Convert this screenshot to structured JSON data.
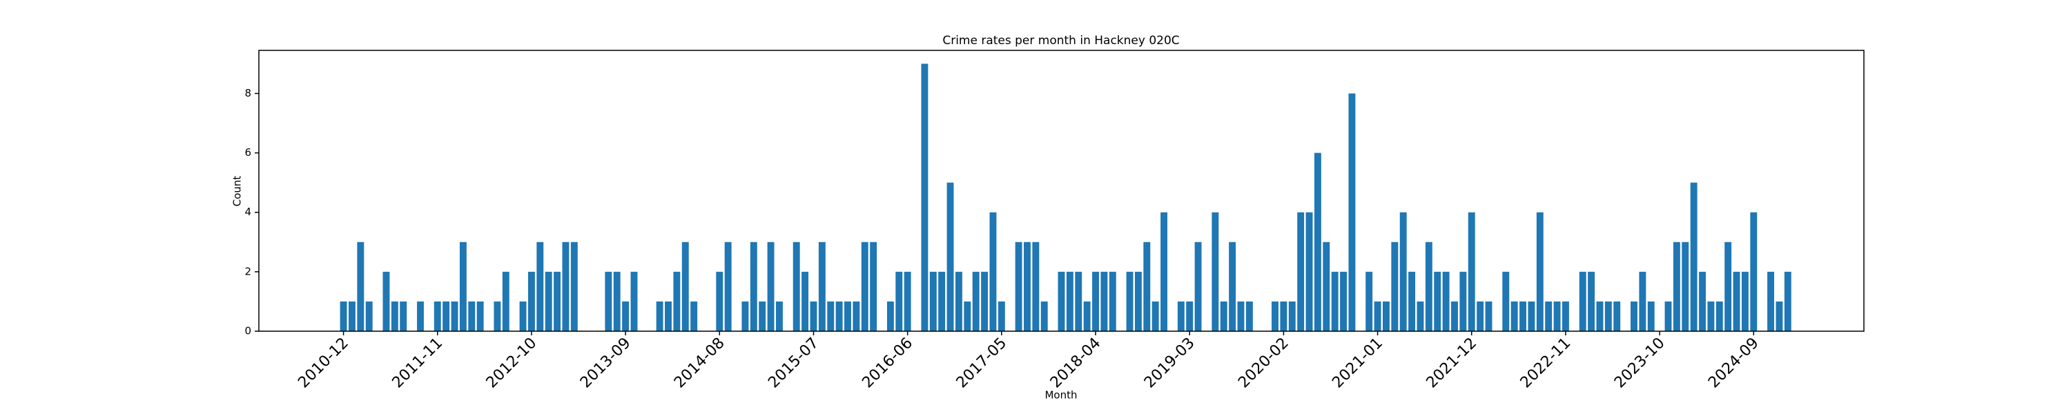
{
  "chart_data": {
    "type": "bar",
    "title": "Crime rates per month in Hackney 020C",
    "xlabel": "Month",
    "ylabel": "Count",
    "color": "#1f77b4",
    "categories": [
      "2010-12",
      null,
      null,
      null,
      null,
      null,
      null,
      null,
      null,
      null,
      null,
      "2011-11",
      null,
      null,
      null,
      null,
      null,
      null,
      null,
      null,
      null,
      null,
      "2012-10",
      null,
      null,
      null,
      null,
      null,
      null,
      null,
      null,
      null,
      null,
      "2013-09",
      null,
      null,
      null,
      null,
      null,
      null,
      null,
      null,
      null,
      null,
      "2014-08",
      null,
      null,
      null,
      null,
      null,
      null,
      null,
      null,
      null,
      null,
      "2015-07",
      null,
      null,
      null,
      null,
      null,
      null,
      null,
      null,
      null,
      null,
      "2016-06",
      null,
      null,
      null,
      null,
      null,
      null,
      null,
      null,
      null,
      null,
      "2017-05",
      null,
      null,
      null,
      null,
      null,
      null,
      null,
      null,
      null,
      null,
      "2018-04",
      null,
      null,
      null,
      null,
      null,
      null,
      null,
      null,
      null,
      null,
      "2019-03",
      null,
      null,
      null,
      null,
      null,
      null,
      null,
      null,
      null,
      null,
      "2020-02",
      null,
      null,
      null,
      null,
      null,
      null,
      null,
      null,
      null,
      null,
      "2021-01",
      null,
      null,
      null,
      null,
      null,
      null,
      null,
      null,
      null,
      null,
      "2021-12",
      null,
      null,
      null,
      null,
      null,
      null,
      null,
      null,
      null,
      null,
      "2022-11",
      null,
      null,
      null,
      null,
      null,
      null,
      null,
      null,
      null,
      null,
      "2023-10",
      null,
      null,
      null,
      null,
      null,
      null,
      null,
      null,
      null,
      null,
      "2024-09",
      null,
      null,
      null,
      null
    ],
    "values": [
      1,
      1,
      3,
      1,
      0,
      2,
      1,
      1,
      0,
      1,
      0,
      1,
      1,
      1,
      3,
      1,
      1,
      0,
      1,
      2,
      0,
      1,
      2,
      3,
      2,
      2,
      3,
      3,
      0,
      0,
      0,
      2,
      2,
      1,
      2,
      0,
      0,
      1,
      1,
      2,
      3,
      1,
      0,
      0,
      2,
      3,
      0,
      1,
      3,
      1,
      3,
      1,
      0,
      3,
      2,
      1,
      3,
      1,
      1,
      1,
      1,
      3,
      3,
      0,
      1,
      2,
      2,
      0,
      9,
      2,
      2,
      5,
      2,
      1,
      2,
      2,
      4,
      1,
      0,
      3,
      3,
      3,
      1,
      0,
      2,
      2,
      2,
      1,
      2,
      2,
      2,
      0,
      2,
      2,
      3,
      1,
      4,
      0,
      1,
      1,
      3,
      0,
      4,
      1,
      3,
      1,
      1,
      0,
      0,
      1,
      1,
      1,
      4,
      4,
      6,
      3,
      2,
      2,
      8,
      0,
      2,
      1,
      1,
      3,
      4,
      2,
      1,
      3,
      2,
      2,
      1,
      2,
      4,
      1,
      1,
      0,
      2,
      1,
      1,
      1,
      4,
      1,
      1,
      1,
      0,
      2,
      2,
      1,
      1,
      1,
      0,
      1,
      2,
      1,
      0,
      1,
      3,
      3,
      5,
      2,
      1,
      1,
      3,
      2,
      2,
      4,
      0,
      2,
      1,
      2
    ],
    "ylim": [
      0,
      9.45
    ],
    "yticks": [
      0,
      2,
      4,
      6,
      8
    ]
  }
}
